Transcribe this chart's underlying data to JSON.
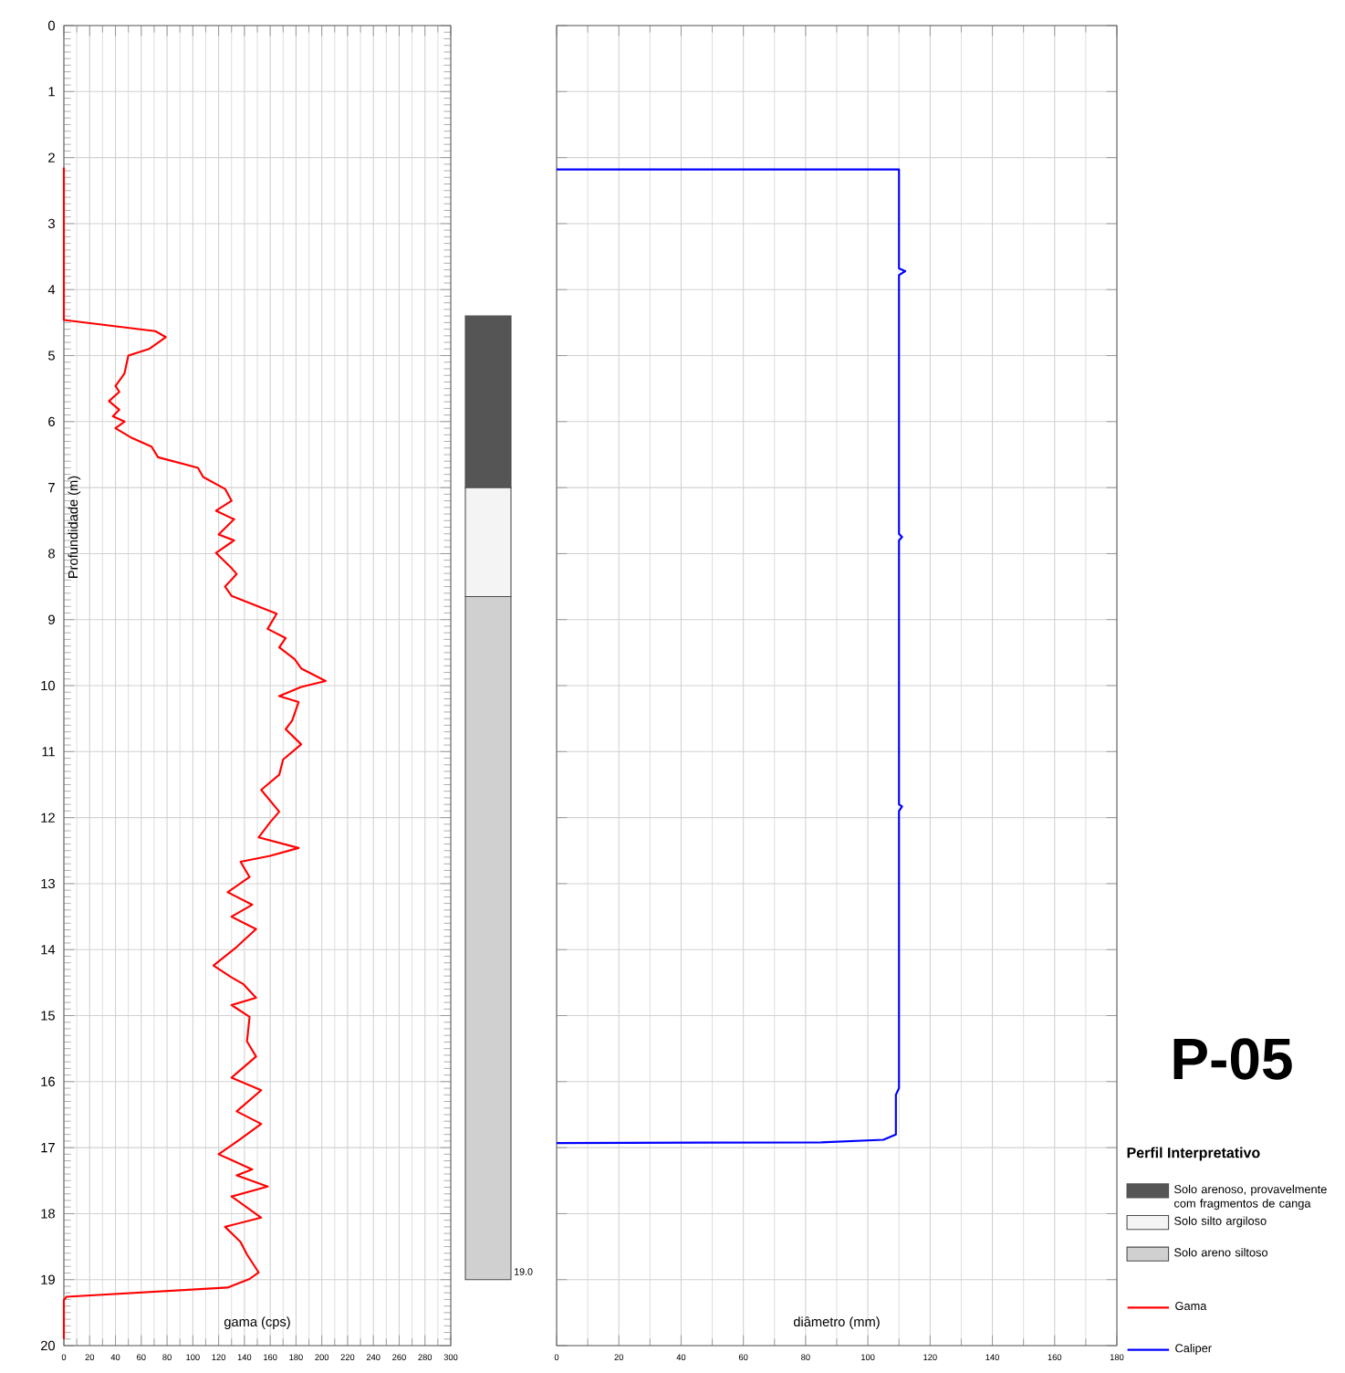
{
  "chart_data": [
    {
      "type": "line",
      "xlabel": "gama (cps)",
      "ylabel": "Profundidade (m)",
      "xlim": [
        0,
        300
      ],
      "xticks": [
        0,
        20,
        40,
        60,
        80,
        100,
        120,
        140,
        160,
        180,
        200,
        220,
        240,
        260,
        280,
        300
      ],
      "ylim": [
        20,
        0
      ],
      "yticks": [
        0,
        1,
        2,
        3,
        4,
        5,
        6,
        7,
        8,
        9,
        10,
        11,
        12,
        13,
        14,
        15,
        16,
        17,
        18,
        19,
        20
      ],
      "grid": true,
      "legend": "right",
      "series": [
        {
          "name": "Gama",
          "color": "#ff0000",
          "x": [
            0,
            0,
            71,
            79,
            66,
            50,
            47,
            40,
            43,
            35,
            43,
            38,
            47,
            40,
            52,
            68,
            73,
            104,
            108,
            125,
            130,
            118,
            132,
            120,
            132,
            118,
            130,
            134,
            125,
            130,
            165,
            158,
            172,
            167,
            179,
            184,
            203,
            184,
            167,
            182,
            177,
            172,
            184,
            170,
            167,
            153,
            167,
            160,
            151,
            182,
            160,
            137,
            144,
            127,
            146,
            130,
            149,
            134,
            116,
            130,
            139,
            149,
            130,
            144,
            142,
            149,
            130,
            153,
            134,
            153,
            137,
            120,
            146,
            134,
            158,
            130,
            153,
            125,
            137,
            142,
            151,
            144,
            127,
            2,
            0,
            0
          ],
          "values": [
            2.15,
            4.46,
            4.63,
            4.72,
            4.9,
            5.0,
            5.27,
            5.46,
            5.55,
            5.69,
            5.82,
            5.92,
            6.0,
            6.1,
            6.24,
            6.38,
            6.54,
            6.7,
            6.84,
            7.02,
            7.2,
            7.35,
            7.48,
            7.71,
            7.8,
            7.99,
            8.22,
            8.31,
            8.5,
            8.64,
            8.91,
            9.14,
            9.28,
            9.42,
            9.6,
            9.74,
            9.93,
            10.02,
            10.16,
            10.25,
            10.53,
            10.66,
            10.89,
            11.12,
            11.35,
            11.58,
            11.91,
            12.07,
            12.3,
            12.46,
            12.58,
            12.67,
            12.9,
            13.13,
            13.32,
            13.5,
            13.69,
            13.96,
            14.24,
            14.42,
            14.52,
            14.73,
            14.84,
            15.02,
            15.39,
            15.62,
            15.94,
            16.13,
            16.45,
            16.64,
            16.87,
            17.1,
            17.33,
            17.42,
            17.59,
            17.74,
            18.06,
            18.2,
            18.43,
            18.62,
            18.89,
            18.99,
            19.12,
            19.26,
            19.31,
            19.9
          ]
        }
      ]
    },
    {
      "type": "bar",
      "legend_title": "Perfil Interpretativo",
      "categories": [
        null
      ],
      "ylim": [
        20,
        0
      ],
      "yticks": [
        0,
        1,
        2,
        3,
        4,
        5,
        6,
        7,
        8,
        9,
        10,
        11,
        12,
        13,
        14,
        15,
        16,
        17,
        18,
        19,
        20
      ],
      "tick_labels": false,
      "legend": "right",
      "series": [
        {
          "name": "Solo arenoso, provavelmente com fragmentos de canga",
          "color": "#555555",
          "base": [
            4.4
          ],
          "values": [
            2.6
          ]
        },
        {
          "name": "Solo silto argiloso",
          "color": "#f4f4f4",
          "base": [
            7.0
          ],
          "values": [
            1.65
          ]
        },
        {
          "name": "Solo areno siltoso",
          "color": "#d0d0d0",
          "base": [
            8.65
          ],
          "values": [
            10.35
          ]
        }
      ],
      "annotations": [
        "19.0"
      ]
    },
    {
      "type": "line",
      "xlabel": "diâmetro (mm)",
      "xlim": [
        0,
        180
      ],
      "xticks": [
        0,
        20,
        40,
        60,
        80,
        100,
        120,
        140,
        160,
        180
      ],
      "ylim": [
        20,
        0
      ],
      "yticks": [
        0,
        1,
        2,
        3,
        4,
        5,
        6,
        7,
        8,
        9,
        10,
        11,
        12,
        13,
        14,
        15,
        16,
        17,
        18,
        19,
        20
      ],
      "tick_labels": "x",
      "grid": true,
      "legend": "right",
      "series": [
        {
          "name": "Caliper",
          "color": "#0000ff",
          "x": [
            0,
            110,
            110,
            112,
            110,
            110,
            111,
            110,
            110,
            111,
            110,
            110,
            109,
            109,
            105,
            85,
            0
          ],
          "values": [
            2.18,
            2.18,
            3.68,
            3.72,
            3.78,
            7.7,
            7.75,
            7.8,
            11.8,
            11.83,
            11.9,
            16.1,
            16.2,
            16.8,
            16.88,
            16.92,
            16.93
          ]
        }
      ]
    },
    {
      "type": "other",
      "title": "P-05"
    }
  ]
}
